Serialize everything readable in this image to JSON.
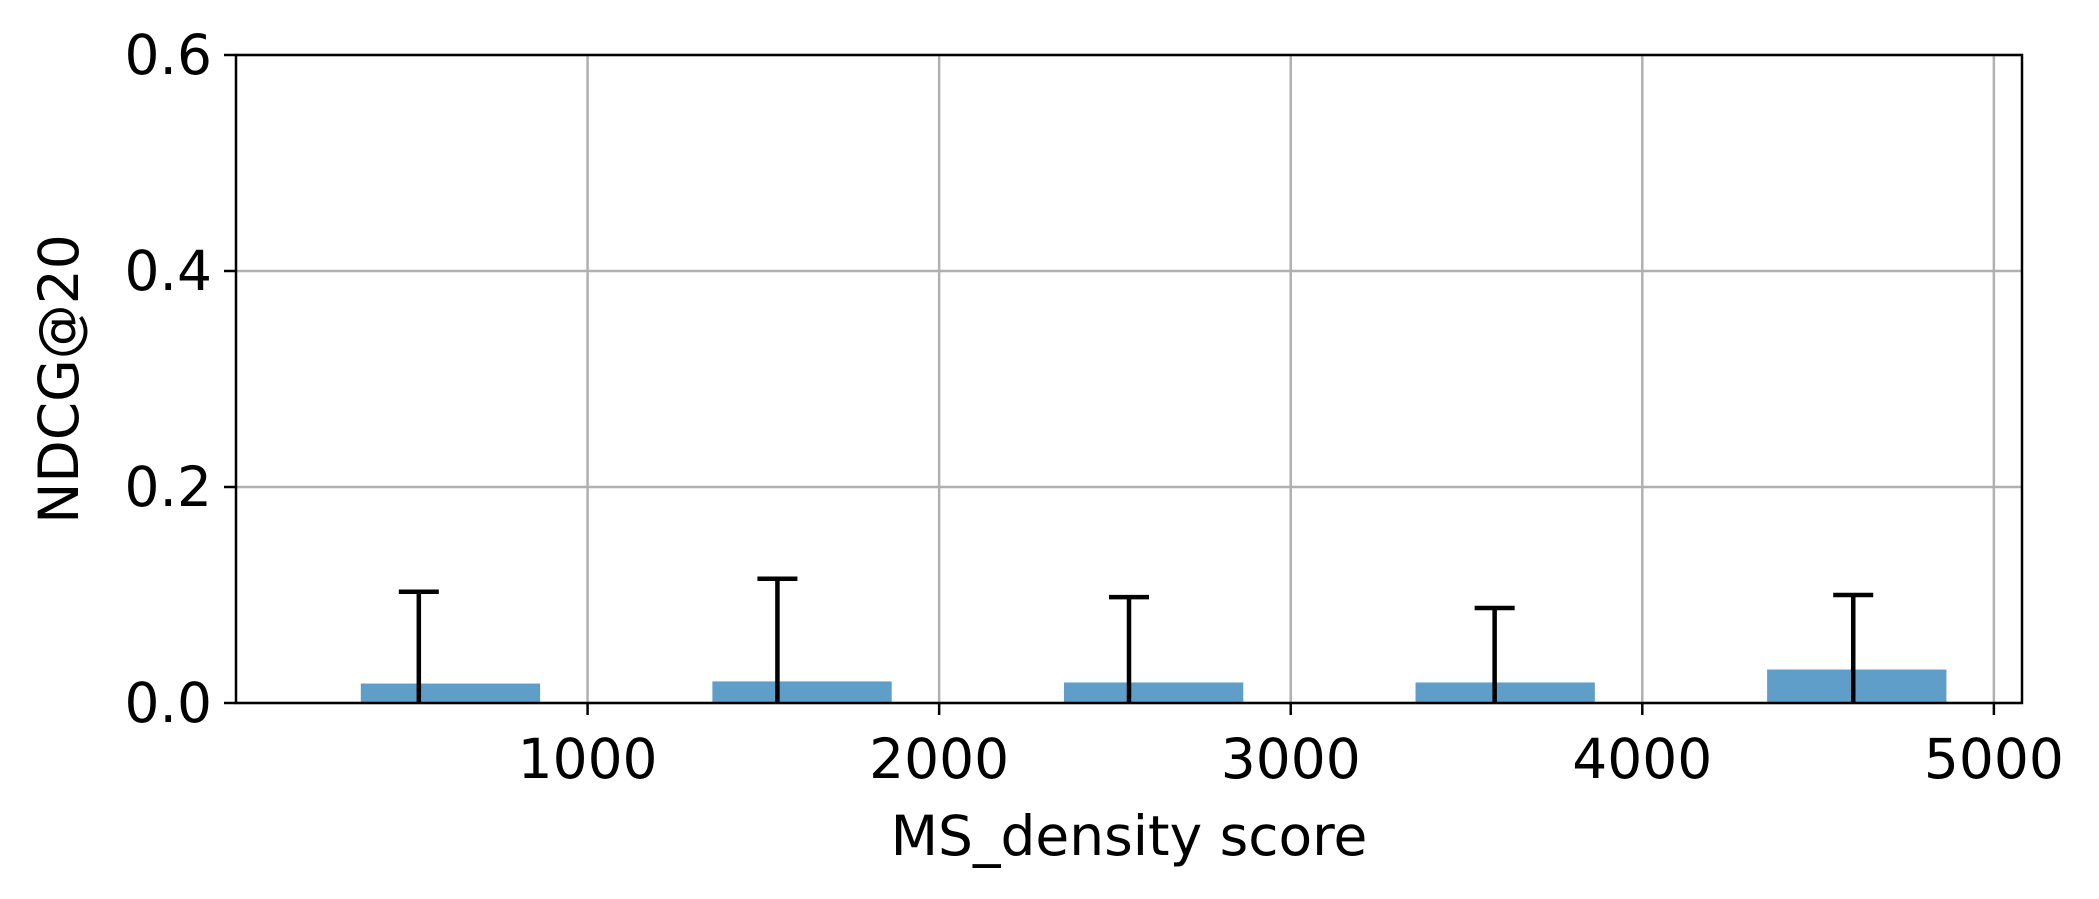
{
  "chart_data": {
    "type": "bar",
    "xlabel": "MS_density score",
    "ylabel": "NDCG@20",
    "xlim": [
      0,
      5080
    ],
    "ylim": [
      0,
      0.6
    ],
    "xticks": [
      1000,
      2000,
      3000,
      4000,
      5000
    ],
    "yticks": [
      0.0,
      0.2,
      0.4,
      0.6
    ],
    "grid": true,
    "bar_color": "#5f9ec9",
    "error_color": "#000000",
    "grid_color": "#b0b0b0",
    "bars": [
      {
        "x": 500,
        "value": 0.018,
        "error": 0.085,
        "width": 510
      },
      {
        "x": 1500,
        "value": 0.02,
        "error": 0.095,
        "width": 510
      },
      {
        "x": 2500,
        "value": 0.019,
        "error": 0.079,
        "width": 510
      },
      {
        "x": 3500,
        "value": 0.019,
        "error": 0.069,
        "width": 510
      },
      {
        "x": 4500,
        "value": 0.031,
        "error": 0.069,
        "width": 510
      }
    ],
    "error_centers": [
      520,
      1540,
      2540,
      3580,
      4600
    ]
  }
}
